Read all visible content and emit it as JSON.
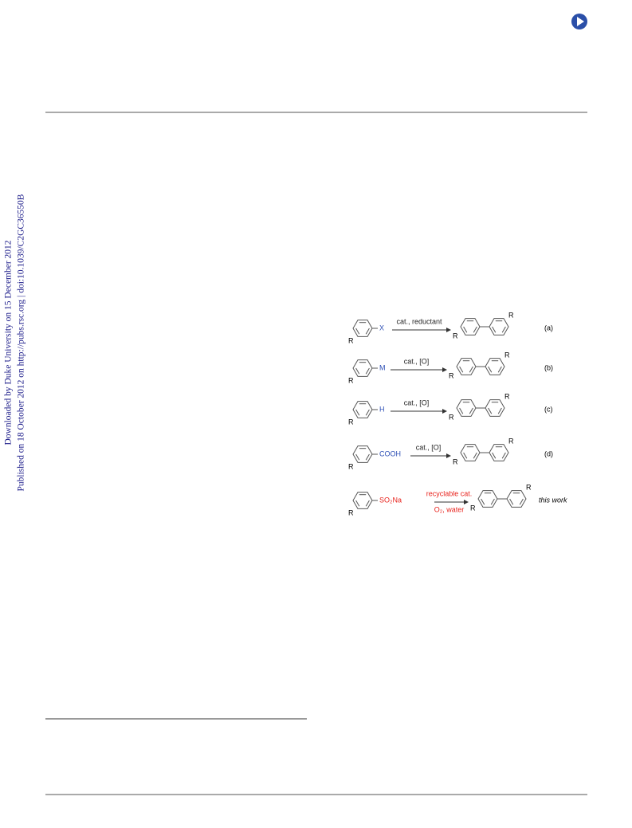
{
  "watermark": {
    "line1": "Downloaded by Duke University on 15 December 2012",
    "line2": "Published on 18 October 2012 on http://pubs.rsc.org | doi:10.1039/C2GC36550B"
  },
  "scheme": {
    "rows": [
      {
        "substituent": "R",
        "group": "X",
        "reagent": "cat., reductant",
        "label": "(a)"
      },
      {
        "substituent": "R",
        "group": "M",
        "reagent": "cat., [O]",
        "label": "(b)"
      },
      {
        "substituent": "R",
        "group": "H",
        "reagent": "cat., [O]",
        "label": "(c)"
      },
      {
        "substituent": "R",
        "group": "COOH",
        "reagent": "cat., [O]",
        "label": "(d)"
      },
      {
        "substituent": "R",
        "group": "SO₂Na",
        "reagent": "recyclable cat.",
        "reagent_below": "O₂, water",
        "label": "this work"
      }
    ]
  }
}
